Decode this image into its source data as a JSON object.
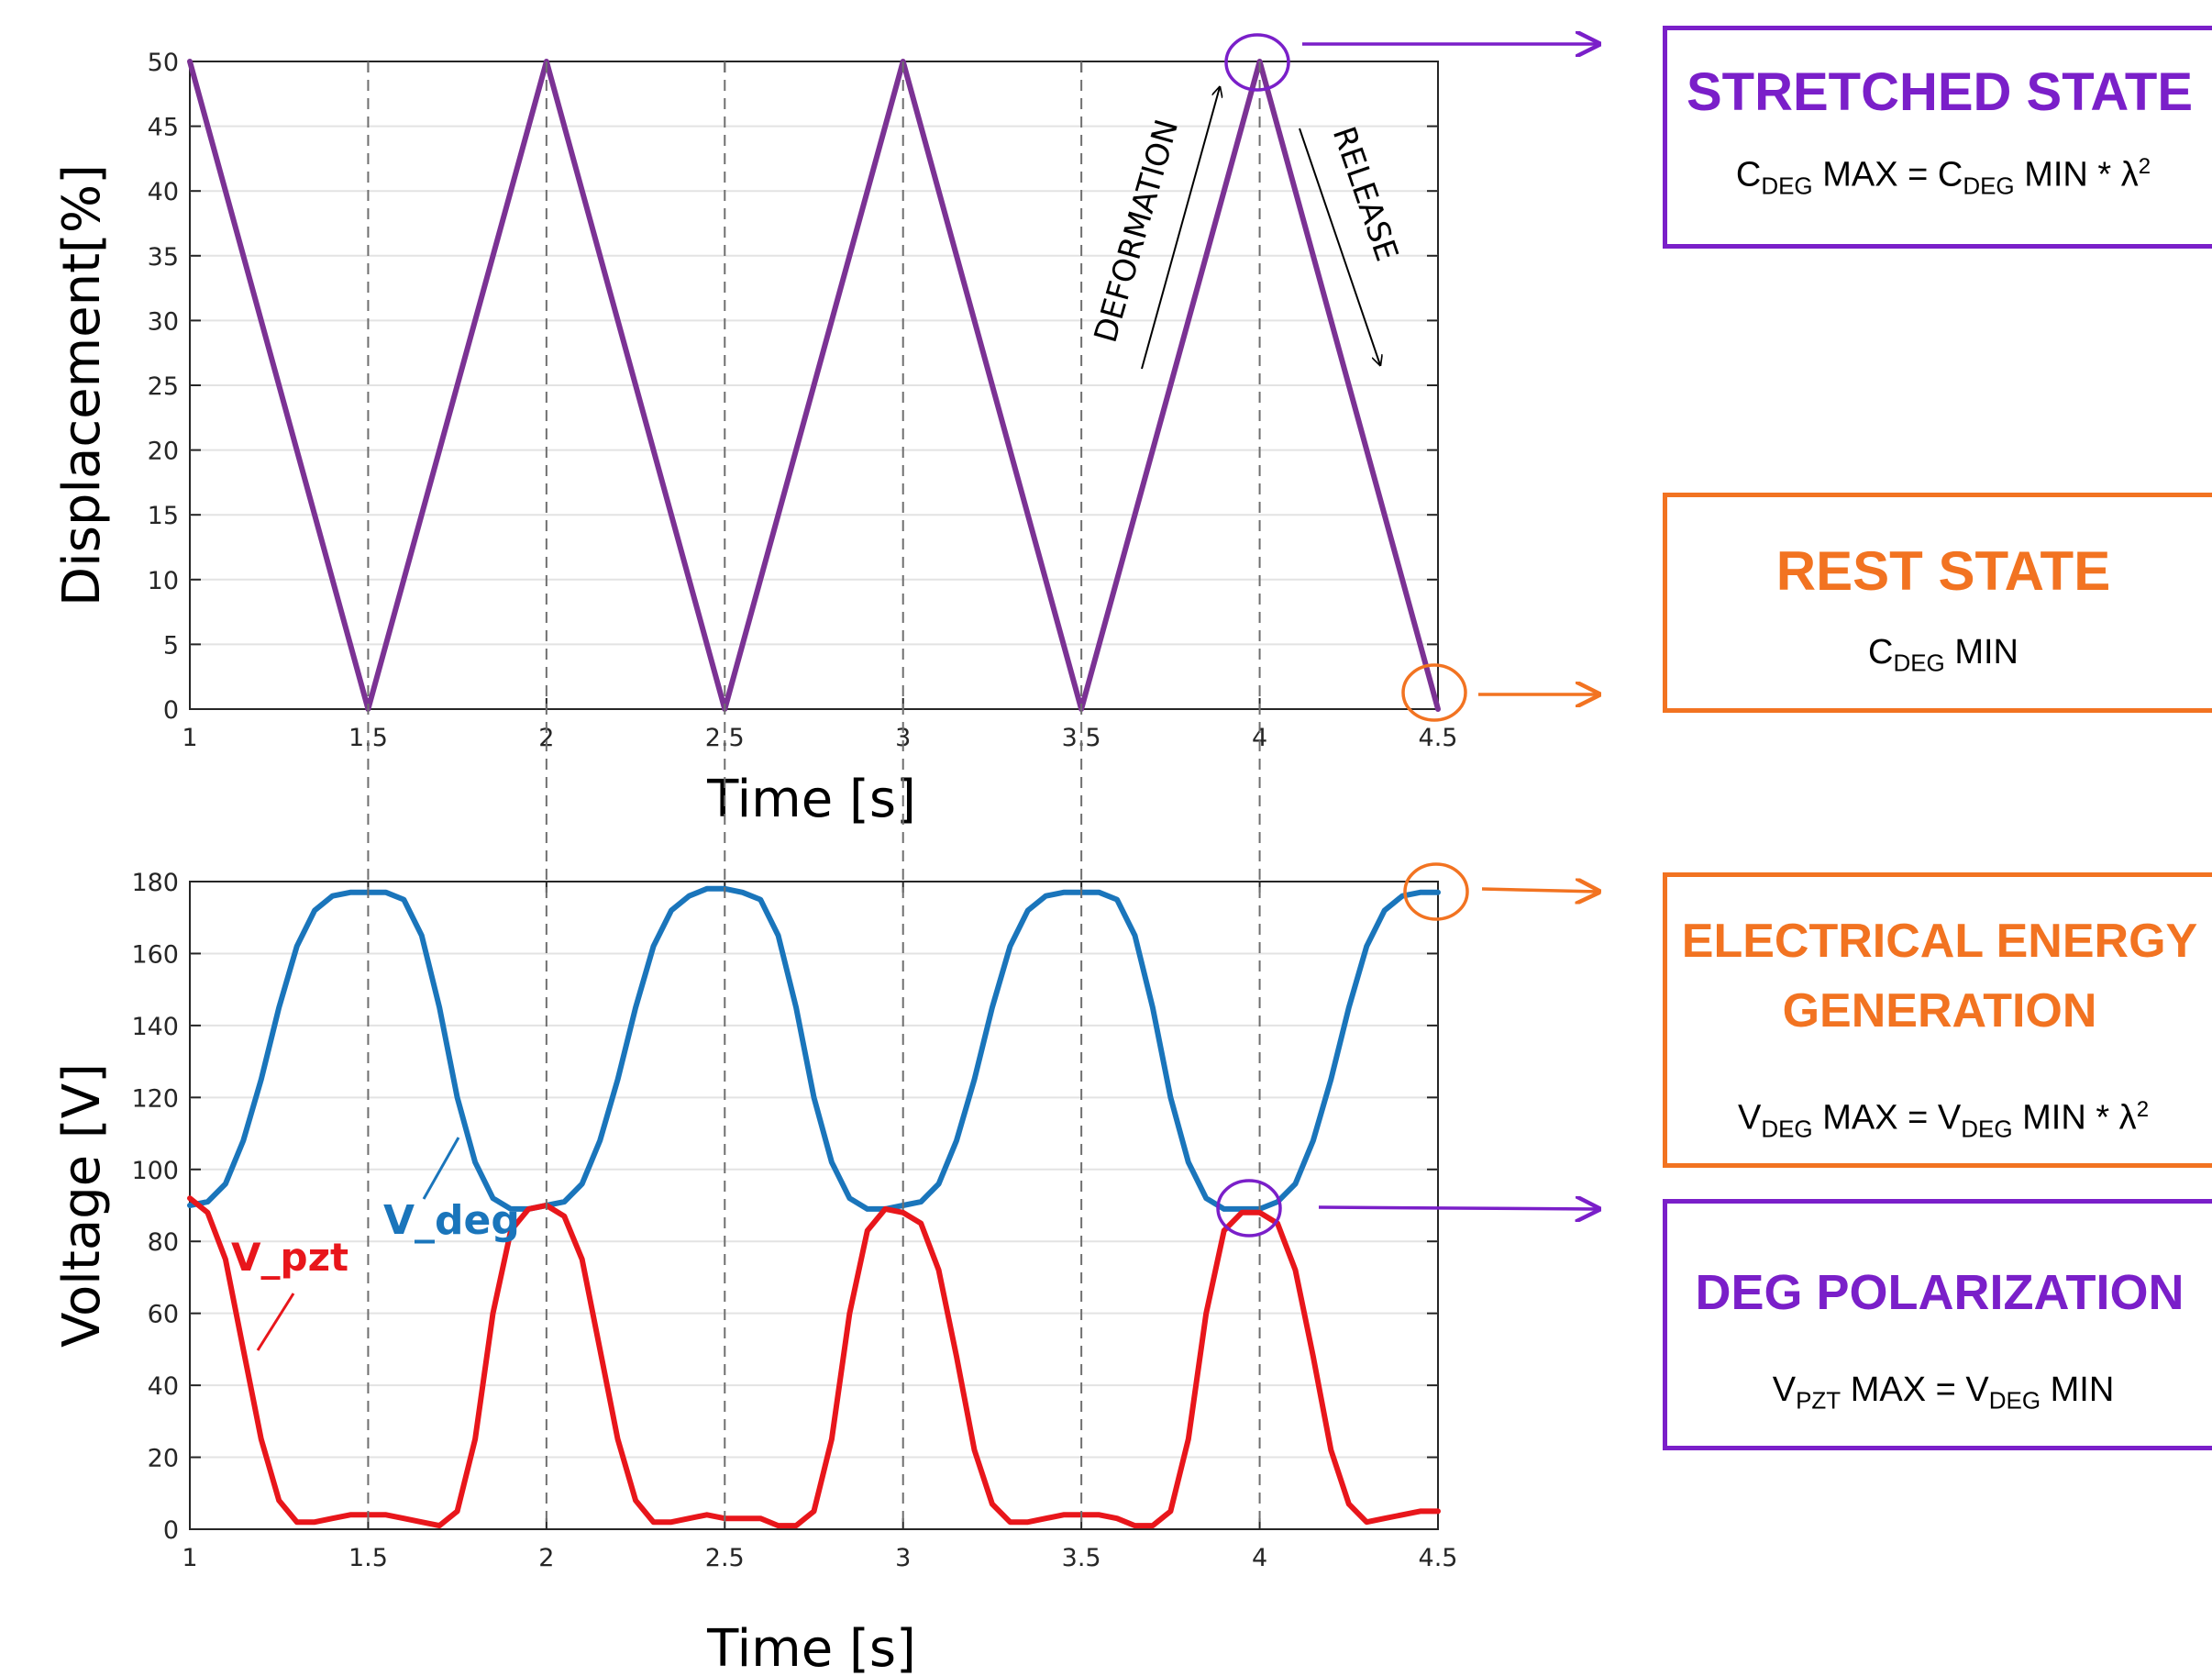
{
  "colors": {
    "displacement_line": "#7b3294",
    "v_deg": "#1a75bb",
    "v_pzt": "#e8161b",
    "purple": "#7a1fc9",
    "orange": "#f27321"
  },
  "annotations": {
    "deformation": "DEFORMATION",
    "release": "RELEASE",
    "v_deg_label": "V_deg",
    "v_pzt_label": "V_pzt"
  },
  "boxes": {
    "stretched": {
      "title": "STRETCHED STATE",
      "eq": {
        "a": "C",
        "a_sub": "DEG",
        "b": " MAX = C",
        "b_sub": "DEG",
        "c": " MIN * λ",
        "c_sup": "2"
      }
    },
    "rest": {
      "title": "REST STATE",
      "eq": {
        "a": "C",
        "a_sub": "DEG",
        "b": " MIN"
      }
    },
    "generation": {
      "title_line1": "ELECTRICAL ENERGY",
      "title_line2": "GENERATION",
      "eq": {
        "a": "V",
        "a_sub": "DEG",
        "b": " MAX = V",
        "b_sub": "DEG",
        "c": " MIN * λ",
        "c_sup": "2"
      }
    },
    "polarization": {
      "title": "DEG POLARIZATION",
      "eq": {
        "a": "V",
        "a_sub": "PZT",
        "b": " MAX = V",
        "b_sub": "DEG",
        "c": " MIN"
      }
    }
  },
  "chart_data": [
    {
      "type": "line",
      "xlabel": "Time [s]",
      "ylabel": "Displacement[%]",
      "xlim": [
        1,
        4.5
      ],
      "ylim": [
        0,
        50
      ],
      "xticks": [
        "1",
        "1.5",
        "2",
        "2.5",
        "3",
        "3.5",
        "4",
        "4.5"
      ],
      "yticks": [
        "0",
        "5",
        "10",
        "15",
        "20",
        "25",
        "30",
        "35",
        "40",
        "45",
        "50"
      ],
      "grid": "horizontal",
      "series": [
        {
          "x": [
            1,
            1.5,
            2,
            2.5,
            3,
            3.5,
            4,
            4.5
          ],
          "y": [
            50,
            0,
            50,
            0,
            50,
            0,
            50,
            0
          ]
        }
      ]
    },
    {
      "type": "line",
      "xlabel": "Time [s]",
      "ylabel": "Voltage [V]",
      "xlim": [
        1,
        4.5
      ],
      "ylim": [
        0,
        180
      ],
      "xticks": [
        "1",
        "1.5",
        "2",
        "2.5",
        "3",
        "3.5",
        "4",
        "4.5"
      ],
      "yticks": [
        "0",
        "20",
        "40",
        "60",
        "80",
        "100",
        "120",
        "140",
        "160",
        "180"
      ],
      "grid": "horizontal",
      "series": [
        {
          "name": "V_deg",
          "x": [
            1,
            1.05,
            1.1,
            1.15,
            1.2,
            1.25,
            1.3,
            1.35,
            1.4,
            1.45,
            1.5,
            1.55,
            1.6,
            1.65,
            1.7,
            1.75,
            1.8,
            1.85,
            1.9,
            1.95,
            2,
            2.05,
            2.1,
            2.15,
            2.2,
            2.25,
            2.3,
            2.35,
            2.4,
            2.45,
            2.5,
            2.55,
            2.6,
            2.65,
            2.7,
            2.75,
            2.8,
            2.85,
            2.9,
            2.95,
            3,
            3.05,
            3.1,
            3.15,
            3.2,
            3.25,
            3.3,
            3.35,
            3.4,
            3.45,
            3.5,
            3.55,
            3.6,
            3.65,
            3.7,
            3.75,
            3.8,
            3.85,
            3.9,
            3.95,
            4,
            4.05,
            4.1,
            4.15,
            4.2,
            4.25,
            4.3,
            4.35,
            4.4,
            4.45,
            4.5
          ],
          "y": [
            90,
            91,
            96,
            108,
            125,
            145,
            162,
            172,
            176,
            177,
            177,
            177,
            175,
            165,
            145,
            120,
            102,
            92,
            89,
            89,
            90,
            91,
            96,
            108,
            125,
            145,
            162,
            172,
            176,
            178,
            178,
            177,
            175,
            165,
            145,
            120,
            102,
            92,
            89,
            89,
            90,
            91,
            96,
            108,
            125,
            145,
            162,
            172,
            176,
            177,
            177,
            177,
            175,
            165,
            145,
            120,
            102,
            92,
            89,
            89,
            89,
            91,
            96,
            108,
            125,
            145,
            162,
            172,
            176,
            177,
            177
          ]
        },
        {
          "name": "V_pzt",
          "x": [
            1,
            1.05,
            1.1,
            1.15,
            1.2,
            1.25,
            1.3,
            1.35,
            1.4,
            1.45,
            1.5,
            1.55,
            1.6,
            1.65,
            1.7,
            1.75,
            1.8,
            1.85,
            1.9,
            1.95,
            2,
            2.05,
            2.1,
            2.15,
            2.2,
            2.25,
            2.3,
            2.35,
            2.4,
            2.45,
            2.5,
            2.55,
            2.6,
            2.65,
            2.7,
            2.75,
            2.8,
            2.85,
            2.9,
            2.95,
            3,
            3.05,
            3.1,
            3.15,
            3.2,
            3.25,
            3.3,
            3.35,
            3.4,
            3.45,
            3.5,
            3.55,
            3.6,
            3.65,
            3.7,
            3.75,
            3.8,
            3.85,
            3.9,
            3.95,
            4,
            4.05,
            4.1,
            4.15,
            4.2,
            4.25,
            4.3,
            4.35,
            4.4,
            4.45,
            4.5
          ],
          "y": [
            92,
            88,
            75,
            50,
            25,
            8,
            2,
            2,
            3,
            4,
            4,
            4,
            3,
            2,
            1,
            5,
            25,
            60,
            83,
            89,
            90,
            87,
            75,
            50,
            25,
            8,
            2,
            2,
            3,
            4,
            3,
            3,
            3,
            1,
            1,
            5,
            25,
            60,
            83,
            89,
            88,
            85,
            72,
            48,
            22,
            7,
            2,
            2,
            3,
            4,
            4,
            4,
            3,
            1,
            1,
            5,
            25,
            60,
            83,
            88,
            88,
            85,
            72,
            48,
            22,
            7,
            2,
            3,
            4,
            5,
            5
          ]
        }
      ]
    }
  ]
}
